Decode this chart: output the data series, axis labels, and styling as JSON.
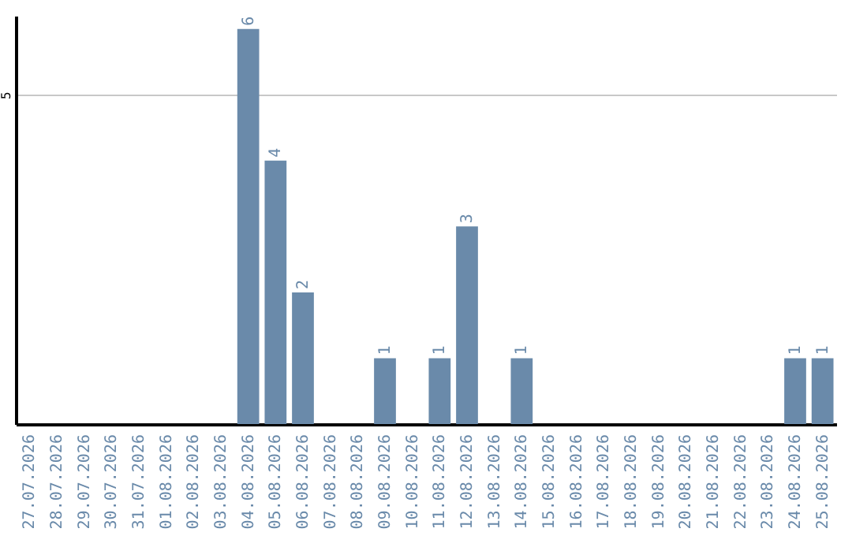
{
  "chart_data": {
    "type": "bar",
    "categories": [
      "27.07.2026",
      "28.07.2026",
      "29.07.2026",
      "30.07.2026",
      "31.07.2026",
      "01.08.2026",
      "02.08.2026",
      "03.08.2026",
      "04.08.2026",
      "05.08.2026",
      "06.08.2026",
      "07.08.2026",
      "08.08.2026",
      "09.08.2026",
      "10.08.2026",
      "11.08.2026",
      "12.08.2026",
      "13.08.2026",
      "14.08.2026",
      "15.08.2026",
      "16.08.2026",
      "17.08.2026",
      "18.08.2026",
      "19.08.2026",
      "20.08.2026",
      "21.08.2026",
      "22.08.2026",
      "23.08.2026",
      "24.08.2026",
      "25.08.2026"
    ],
    "values": [
      0,
      0,
      0,
      0,
      0,
      0,
      0,
      0,
      6,
      4,
      2,
      0,
      0,
      1,
      0,
      1,
      3,
      0,
      1,
      0,
      0,
      0,
      0,
      0,
      0,
      0,
      0,
      0,
      1,
      1
    ],
    "value_labels": [
      null,
      null,
      null,
      null,
      null,
      null,
      null,
      null,
      "6",
      "4",
      "2",
      null,
      null,
      "1",
      null,
      "1",
      "3",
      null,
      "1",
      null,
      null,
      null,
      null,
      null,
      null,
      null,
      null,
      null,
      "1",
      "1"
    ],
    "color": "#6a8aaa",
    "ylim": [
      0,
      6.2
    ],
    "yticks": [
      5
    ],
    "grid": "y"
  }
}
